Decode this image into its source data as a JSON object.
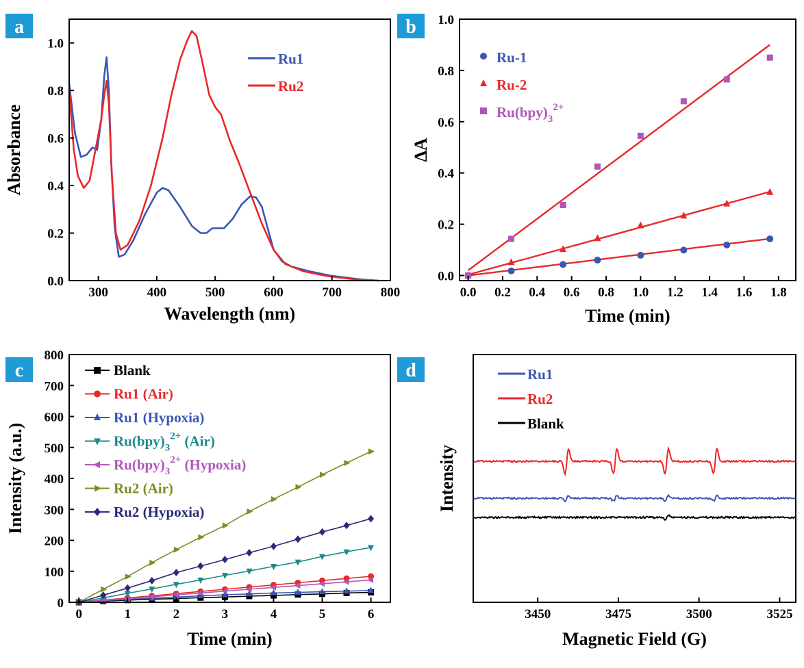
{
  "colors": {
    "badge": "#1e9bd7",
    "blue": "#3a56b4",
    "red": "#e8282b",
    "magenta": "#b157b8",
    "black": "#000000",
    "teal": "#1c8a8a",
    "olive": "#7c8f23",
    "navy": "#2a2a7a"
  },
  "chart_data": [
    {
      "panel": "a",
      "type": "line",
      "xlabel": "Wavelength (nm)",
      "ylabel": "Absorbance",
      "xlim": [
        250,
        800
      ],
      "ylim": [
        0,
        1.1
      ],
      "xticks": [
        "300",
        "400",
        "500",
        "600",
        "700",
        "800"
      ],
      "yticks": [
        "0.0",
        "0.2",
        "0.4",
        "0.6",
        "0.8",
        "1.0"
      ],
      "legend_position": "top-right",
      "series": [
        {
          "name": "Ru1",
          "color": "#3a56b4",
          "points": [
            [
              250,
              0.83
            ],
            [
              260,
              0.62
            ],
            [
              270,
              0.52
            ],
            [
              280,
              0.53
            ],
            [
              290,
              0.56
            ],
            [
              298,
              0.55
            ],
            [
              305,
              0.68
            ],
            [
              310,
              0.86
            ],
            [
              314,
              0.94
            ],
            [
              318,
              0.8
            ],
            [
              322,
              0.5
            ],
            [
              328,
              0.22
            ],
            [
              335,
              0.1
            ],
            [
              345,
              0.11
            ],
            [
              360,
              0.17
            ],
            [
              380,
              0.28
            ],
            [
              400,
              0.37
            ],
            [
              410,
              0.39
            ],
            [
              420,
              0.38
            ],
            [
              440,
              0.31
            ],
            [
              460,
              0.23
            ],
            [
              475,
              0.2
            ],
            [
              485,
              0.2
            ],
            [
              495,
              0.22
            ],
            [
              505,
              0.22
            ],
            [
              515,
              0.22
            ],
            [
              530,
              0.26
            ],
            [
              545,
              0.32
            ],
            [
              560,
              0.355
            ],
            [
              570,
              0.35
            ],
            [
              580,
              0.31
            ],
            [
              590,
              0.22
            ],
            [
              600,
              0.13
            ],
            [
              615,
              0.08
            ],
            [
              630,
              0.06
            ],
            [
              660,
              0.04
            ],
            [
              700,
              0.02
            ],
            [
              750,
              0.005
            ],
            [
              780,
              0.0
            ]
          ]
        },
        {
          "name": "Ru2",
          "color": "#e8282b",
          "points": [
            [
              250,
              0.8
            ],
            [
              258,
              0.55
            ],
            [
              265,
              0.44
            ],
            [
              275,
              0.39
            ],
            [
              285,
              0.42
            ],
            [
              295,
              0.55
            ],
            [
              305,
              0.68
            ],
            [
              310,
              0.78
            ],
            [
              314,
              0.84
            ],
            [
              318,
              0.74
            ],
            [
              323,
              0.45
            ],
            [
              330,
              0.2
            ],
            [
              338,
              0.13
            ],
            [
              350,
              0.15
            ],
            [
              370,
              0.25
            ],
            [
              390,
              0.4
            ],
            [
              410,
              0.6
            ],
            [
              425,
              0.78
            ],
            [
              440,
              0.93
            ],
            [
              452,
              1.01
            ],
            [
              460,
              1.05
            ],
            [
              468,
              1.03
            ],
            [
              478,
              0.92
            ],
            [
              490,
              0.78
            ],
            [
              500,
              0.73
            ],
            [
              510,
              0.7
            ],
            [
              525,
              0.59
            ],
            [
              540,
              0.5
            ],
            [
              560,
              0.37
            ],
            [
              580,
              0.24
            ],
            [
              600,
              0.13
            ],
            [
              620,
              0.07
            ],
            [
              650,
              0.04
            ],
            [
              690,
              0.02
            ],
            [
              740,
              0.005
            ],
            [
              780,
              0.0
            ]
          ]
        }
      ]
    },
    {
      "panel": "b",
      "type": "scatter",
      "xlabel": "Time (min)",
      "ylabel": "ΔA",
      "xlim": [
        -0.05,
        1.9
      ],
      "ylim": [
        -0.02,
        1.0
      ],
      "xticks": [
        "0.0",
        "0.2",
        "0.4",
        "0.6",
        "0.8",
        "1.0",
        "1.2",
        "1.4",
        "1.6",
        "1.8"
      ],
      "yticks": [
        "0.0",
        "0.2",
        "0.4",
        "0.6",
        "0.8",
        "1.0"
      ],
      "legend_position": "top-left",
      "x": [
        0,
        0.25,
        0.55,
        0.75,
        1.0,
        1.25,
        1.5,
        1.75
      ],
      "series": [
        {
          "name": "Ru-1",
          "marker": "circle",
          "color": "#3a56b4",
          "values": [
            0.0,
            0.018,
            0.043,
            0.06,
            0.079,
            0.099,
            0.119,
            0.143
          ],
          "fit": [
            0.0,
            0.082
          ]
        },
        {
          "name": "Ru-2",
          "marker": "triangle",
          "color": "#e8282b",
          "values": [
            0.0,
            0.051,
            0.102,
            0.145,
            0.195,
            0.233,
            0.28,
            0.325
          ],
          "fit": [
            0.003,
            0.185
          ]
        },
        {
          "name": "Ru(bpy)",
          "name_sub": "3",
          "name_sup": "2+",
          "marker": "square",
          "color": "#b157b8",
          "values": [
            0.0,
            0.143,
            0.275,
            0.425,
            0.545,
            0.68,
            0.765,
            0.85
          ],
          "fit": [
            0.02,
            0.503
          ]
        }
      ],
      "fit_color": "#e8282b"
    },
    {
      "panel": "c",
      "type": "line",
      "xlabel": "Time (min)",
      "ylabel": "Intensity (a.u.)",
      "xlim": [
        -0.2,
        6.4
      ],
      "ylim": [
        0,
        800
      ],
      "xticks": [
        "0",
        "1",
        "2",
        "3",
        "4",
        "5",
        "6"
      ],
      "yticks": [
        "0",
        "100",
        "200",
        "300",
        "400",
        "500",
        "600",
        "700",
        "800"
      ],
      "legend_position": "top-left",
      "x": [
        0,
        0.5,
        1,
        1.5,
        2,
        2.5,
        3,
        3.5,
        4,
        4.5,
        5,
        5.5,
        6
      ],
      "series": [
        {
          "name": "Blank",
          "marker": "square",
          "color": "#000000",
          "values": [
            0,
            4,
            7,
            10,
            12,
            15,
            17,
            20,
            22,
            25,
            27,
            30,
            32
          ]
        },
        {
          "name": "Ru1 (Air)",
          "marker": "circle",
          "color": "#e8282b",
          "values": [
            0,
            7,
            14,
            21,
            28,
            35,
            42,
            49,
            56,
            63,
            70,
            77,
            84
          ]
        },
        {
          "name": "Ru1 (Hypoxia)",
          "marker": "triangle",
          "color": "#3a56b4",
          "values": [
            0,
            5,
            9,
            13,
            17,
            21,
            24,
            27,
            30,
            32,
            34,
            36,
            38
          ]
        },
        {
          "name": "Ru(bpy)",
          "name_sub": "3",
          "name_sup": "2+",
          "name_suffix": " (Air)",
          "marker": "triangle-down",
          "color": "#1c8a8a",
          "values": [
            0,
            14,
            29,
            43,
            58,
            72,
            87,
            101,
            116,
            130,
            148,
            163,
            177
          ]
        },
        {
          "name": "Ru(bpy)",
          "name_sub": "3",
          "name_sup": "2+",
          "name_suffix": " (Hypoxia)",
          "marker": "triangle-left",
          "color": "#b157b8",
          "values": [
            0,
            6,
            12,
            18,
            24,
            30,
            36,
            42,
            48,
            54,
            60,
            66,
            72
          ]
        },
        {
          "name": "Ru2 (Air)",
          "marker": "triangle-right",
          "color": "#7c8f23",
          "values": [
            0,
            42,
            83,
            128,
            170,
            210,
            248,
            293,
            333,
            372,
            412,
            450,
            487
          ]
        },
        {
          "name": "Ru2 (Hypoxia)",
          "marker": "diamond",
          "color": "#2a2a7a",
          "values": [
            0,
            23,
            46,
            70,
            96,
            117,
            138,
            160,
            181,
            204,
            227,
            248,
            270
          ]
        }
      ]
    },
    {
      "panel": "d",
      "type": "line",
      "xlabel": "Magnetic Field (G)",
      "ylabel": "Intensity",
      "xlim": [
        3430,
        3530
      ],
      "xticks": [
        "3450",
        "3475",
        "3500",
        "3525"
      ],
      "legend_position": "top-left",
      "series": [
        {
          "name": "Ru1",
          "color": "#3a56b4",
          "baseline": 0.0,
          "peaks": [
            3459,
            3474,
            3490,
            3505
          ],
          "amplitude": 0.3
        },
        {
          "name": "Ru2",
          "color": "#e8282b",
          "baseline": 1.0,
          "peaks": [
            3459,
            3474,
            3490,
            3505
          ],
          "amplitude": 1.0
        },
        {
          "name": "Blank",
          "color": "#000000",
          "baseline": -0.2,
          "peaks": [
            3490
          ],
          "amplitude": 0.12
        }
      ]
    }
  ]
}
